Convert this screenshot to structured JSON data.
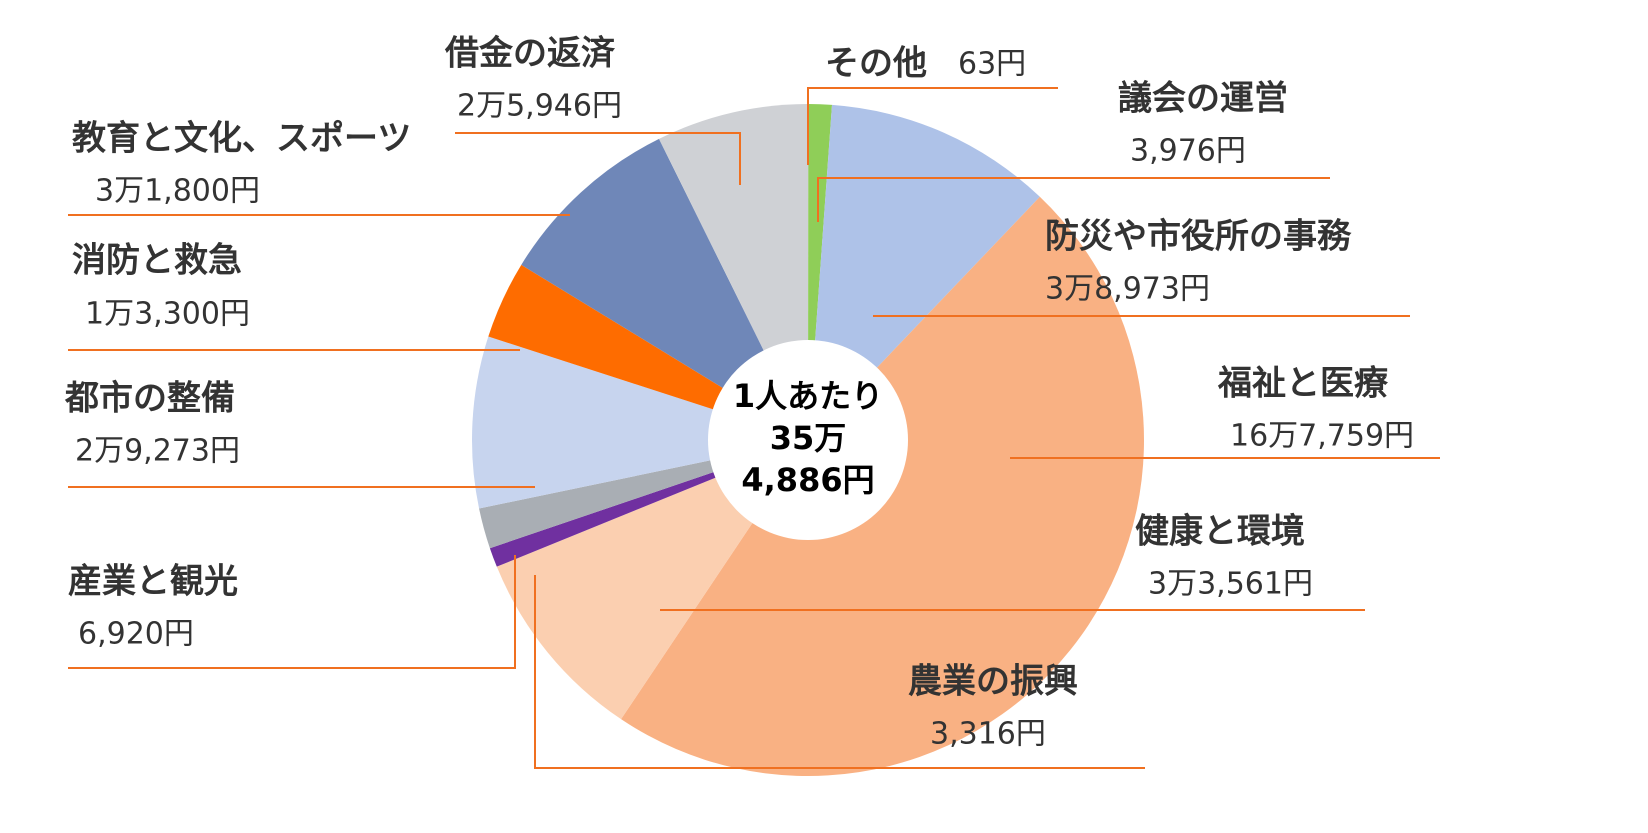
{
  "chart_data": {
    "type": "pie",
    "center_label": [
      "1人あたり",
      "35万",
      "4,886円"
    ],
    "categories": [
      "その他",
      "議会の運営",
      "防災や市役所の事務",
      "福祉と医療",
      "健康と環境",
      "農業の振興",
      "産業と観光",
      "都市の整備",
      "消防と救急",
      "教育と文化、スポーツ",
      "借金の返済"
    ],
    "values": [
      63,
      3976,
      38973,
      167759,
      33561,
      3316,
      6920,
      29273,
      13300,
      31800,
      25946
    ],
    "value_labels": [
      "63円",
      "3,976円",
      "3万8,973円",
      "16万7,759円",
      "3万3,561円",
      "3,316円",
      "6,920円",
      "2万9,273円",
      "1万3,300円",
      "3万1,800円",
      "2万5,946円"
    ],
    "colors": [
      "#c8c8c8",
      "#8fce58",
      "#aec2e8",
      "#f9b183",
      "#fbcfb0",
      "#7030a0",
      "#a9aeb4",
      "#c7d4ee",
      "#fe6c00",
      "#6f87b8",
      "#cfd1d5"
    ]
  }
}
